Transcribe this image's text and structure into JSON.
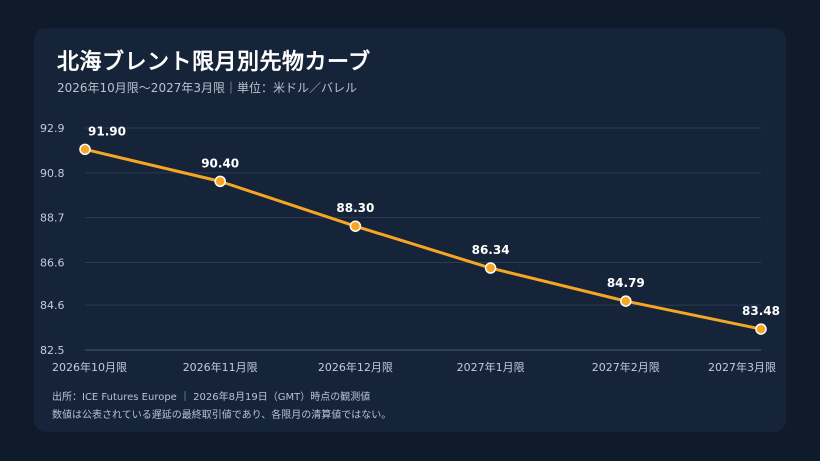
{
  "header": {
    "title": "北海ブレント限月別先物カーブ",
    "subtitle": "2026年10月限～2027年3月限｜単位：米ドル／バレル"
  },
  "footer": {
    "source": "出所：ICE Futures Europe ｜ 2026年8月19日（GMT）時点の観測値",
    "disclaimer": "数値は公表されている遅延の最終取引値であり、各限月の清算値ではない。"
  },
  "colors": {
    "background": "#0f1a2a",
    "card": "#16243a",
    "line": "#f5a623",
    "grid": "#2c3b52"
  },
  "chart_data": {
    "type": "line",
    "categories": [
      "2026年10月限",
      "2026年11月限",
      "2026年12月限",
      "2027年1月限",
      "2027年2月限",
      "2027年3月限"
    ],
    "series": [
      {
        "values": [
          91.9,
          90.4,
          88.3,
          86.34,
          84.79,
          83.48
        ]
      }
    ],
    "value_labels": [
      "91.90",
      "90.40",
      "88.30",
      "86.34",
      "84.79",
      "83.48"
    ],
    "yticks": [
      "92.9",
      "90.8",
      "88.7",
      "86.6",
      "84.6",
      "82.5"
    ],
    "ylim": [
      82.5,
      92.9
    ],
    "grid": true,
    "legend": "none"
  }
}
